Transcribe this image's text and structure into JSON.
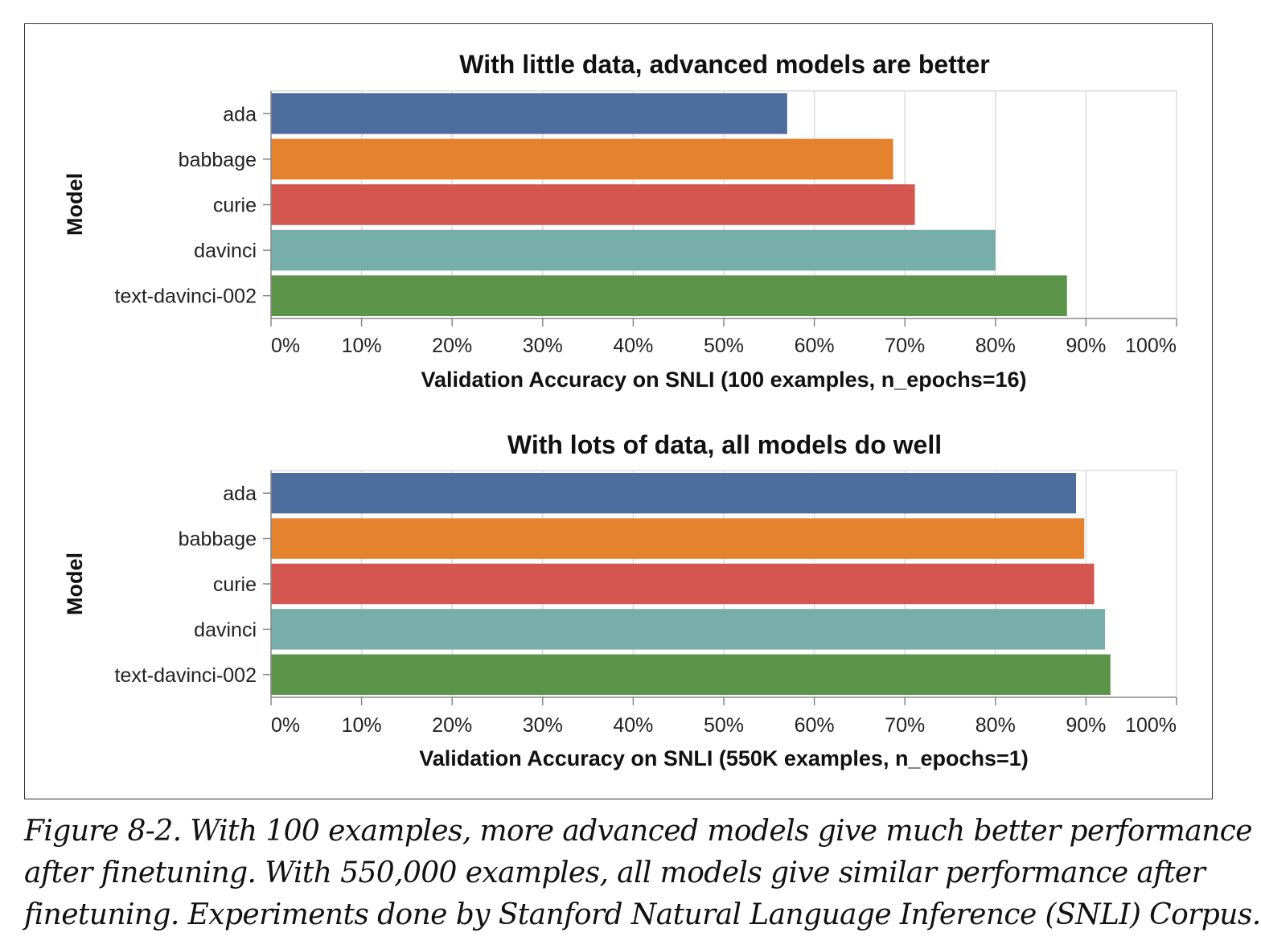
{
  "colors": {
    "ada": "#4c6d9e",
    "babbage": "#e5822d",
    "curie": "#d45651",
    "davinci": "#77aeaa",
    "text-davinci-002": "#5c954a",
    "grid": "#dddddd",
    "axis": "#888888"
  },
  "chart_data": [
    {
      "type": "bar",
      "orientation": "horizontal",
      "title": "With little data, advanced models are better",
      "xlabel": "Validation Accuracy on SNLI (100 examples, n_epochs=16)",
      "ylabel": "Model",
      "categories": [
        "ada",
        "babbage",
        "curie",
        "davinci",
        "text-davinci-002"
      ],
      "values": [
        0.57,
        0.687,
        0.711,
        0.8,
        0.879
      ],
      "xlim": [
        0,
        1
      ],
      "ticks": [
        "0%",
        "10%",
        "20%",
        "30%",
        "40%",
        "50%",
        "60%",
        "70%",
        "80%",
        "90%",
        "100%"
      ],
      "grid": true
    },
    {
      "type": "bar",
      "orientation": "horizontal",
      "title": "With lots of data, all models do well",
      "xlabel": "Validation Accuracy on SNLI (550K examples, n_epochs=1)",
      "ylabel": "Model",
      "categories": [
        "ada",
        "babbage",
        "curie",
        "davinci",
        "text-davinci-002"
      ],
      "values": [
        0.889,
        0.898,
        0.909,
        0.921,
        0.927
      ],
      "xlim": [
        0,
        1
      ],
      "ticks": [
        "0%",
        "10%",
        "20%",
        "30%",
        "40%",
        "50%",
        "60%",
        "70%",
        "80%",
        "90%",
        "100%"
      ],
      "grid": true
    }
  ],
  "caption": {
    "lines": [
      "Figure 8-2. With 100 examples, more advanced models give much better performance",
      "after finetuning. With 550,000 examples, all models give similar performance after",
      "finetuning. Experiments done by Stanford Natural Language Inference (SNLI) Corpus."
    ]
  }
}
